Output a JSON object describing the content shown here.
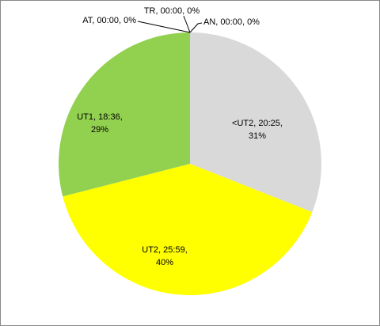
{
  "chart_data": {
    "type": "pie",
    "categories": [
      "AN",
      "<UT2",
      "UT2",
      "UT1",
      "AT",
      "TR"
    ],
    "times": [
      "00:00",
      "20:25",
      "25:59",
      "18:36",
      "00:00",
      "00:00"
    ],
    "values": [
      0,
      31,
      40,
      29,
      0,
      0
    ],
    "value_labels": [
      "0%",
      "31%",
      "40%",
      "29%",
      "0%",
      "0%"
    ],
    "colors": [
      "#4472c4",
      "#d9d9d9",
      "#ffff00",
      "#92d050",
      "#ed7d31",
      "#7030a0"
    ]
  }
}
